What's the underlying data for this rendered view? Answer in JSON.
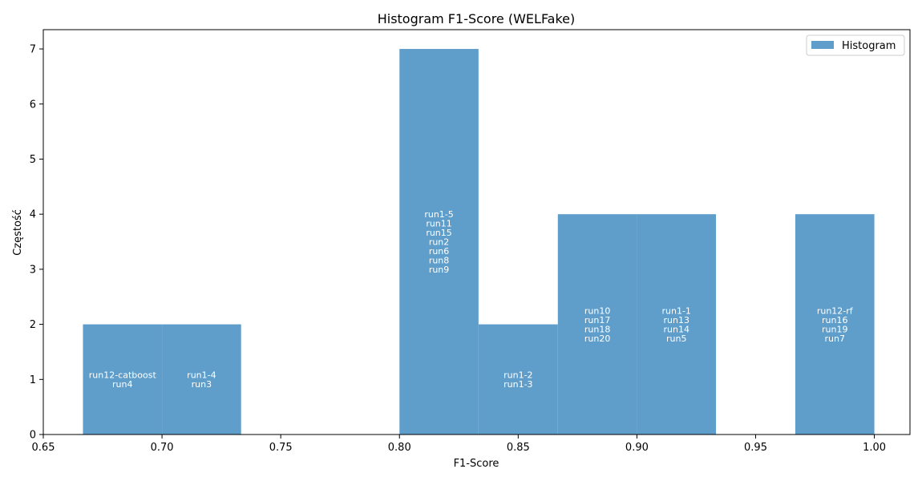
{
  "chart_data": {
    "type": "bar",
    "title": "Histogram F1-Score (WELFake)",
    "xlabel": "F1-Score",
    "ylabel": "Częstość",
    "xlim": [
      0.65,
      1.015
    ],
    "ylim": [
      0,
      7.35
    ],
    "xticks": [
      "0.65",
      "0.70",
      "0.75",
      "0.80",
      "0.85",
      "0.90",
      "0.95",
      "1.00"
    ],
    "yticks": [
      "0",
      "1",
      "2",
      "3",
      "4",
      "5",
      "6",
      "7"
    ],
    "grid": false,
    "legend": {
      "position": "top-right",
      "entries": [
        "Histogram"
      ]
    },
    "series": [
      {
        "name": "Histogram",
        "color": "#5f9ecb",
        "bins": [
          {
            "x0": 0.6667,
            "x1": 0.7,
            "count": 2,
            "labels": [
              "run12-catboost",
              "run4"
            ]
          },
          {
            "x0": 0.7,
            "x1": 0.7333,
            "count": 2,
            "labels": [
              "run1-4",
              "run3"
            ]
          },
          {
            "x0": 0.8,
            "x1": 0.8333,
            "count": 7,
            "labels": [
              "run1-5",
              "run11",
              "run15",
              "run2",
              "run6",
              "run8",
              "run9"
            ]
          },
          {
            "x0": 0.8333,
            "x1": 0.8667,
            "count": 2,
            "labels": [
              "run1-2",
              "run1-3"
            ]
          },
          {
            "x0": 0.8667,
            "x1": 0.9,
            "count": 4,
            "labels": [
              "run10",
              "run17",
              "run18",
              "run20"
            ]
          },
          {
            "x0": 0.9,
            "x1": 0.9333,
            "count": 4,
            "labels": [
              "run1-1",
              "run13",
              "run14",
              "run5"
            ]
          },
          {
            "x0": 0.9667,
            "x1": 1.0,
            "count": 4,
            "labels": [
              "run12-rf",
              "run16",
              "run19",
              "run7"
            ]
          }
        ]
      }
    ]
  }
}
